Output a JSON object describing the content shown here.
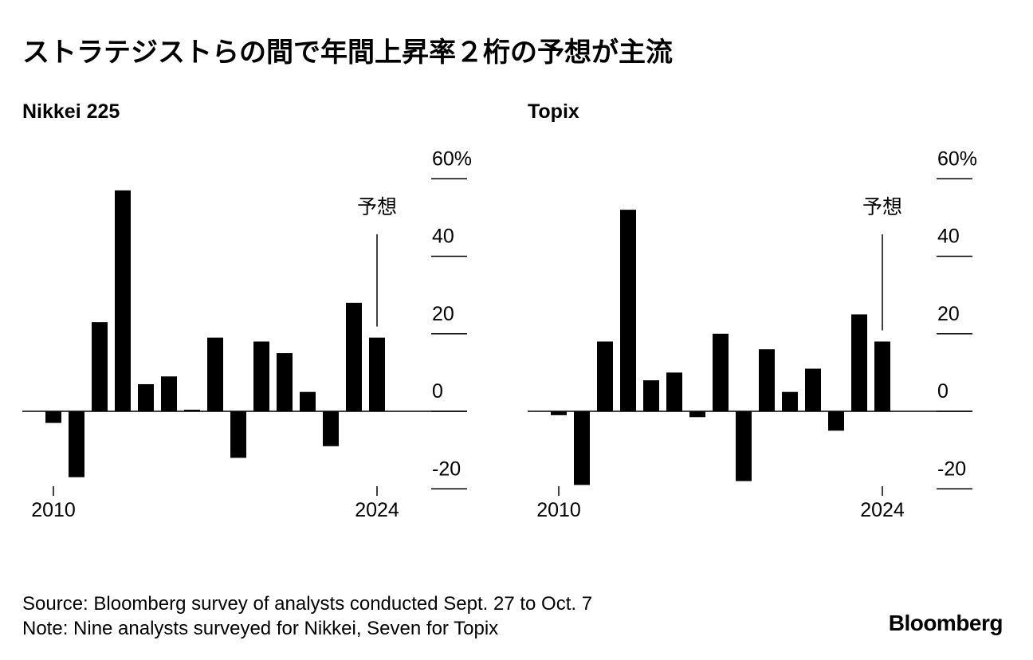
{
  "title": "ストラテジストらの間で年間上昇率２桁の予想が主流",
  "footer": {
    "source": "Source: Bloomberg survey of analysts conducted Sept. 27 to Oct. 7",
    "note": "Note: Nine analysts surveyed for Nikkei, Seven for Topix",
    "brand": "Bloomberg"
  },
  "chart_data": [
    {
      "type": "bar",
      "title": "Nikkei 225",
      "categories": [
        "2010",
        "2011",
        "2012",
        "2013",
        "2014",
        "2015",
        "2016",
        "2017",
        "2018",
        "2019",
        "2020",
        "2021",
        "2022",
        "2023",
        "2024"
      ],
      "values": [
        -3,
        -17,
        23,
        57,
        7,
        9,
        0.4,
        19,
        -12,
        18,
        15,
        5,
        -9,
        28,
        19
      ],
      "x_tick_labels": [
        "2010",
        "2024"
      ],
      "y_ticks": [
        60,
        40,
        20,
        0,
        -20
      ],
      "y_tick_labels": [
        "60%",
        "40",
        "20",
        "0",
        "-20"
      ],
      "ylim": [
        -20,
        60
      ],
      "annotation": {
        "label": "予想",
        "category": "2024"
      }
    },
    {
      "type": "bar",
      "title": "Topix",
      "categories": [
        "2010",
        "2011",
        "2012",
        "2013",
        "2014",
        "2015",
        "2016",
        "2017",
        "2018",
        "2019",
        "2020",
        "2021",
        "2022",
        "2023",
        "2024"
      ],
      "values": [
        -1,
        -19,
        18,
        52,
        8,
        10,
        -1.5,
        20,
        -18,
        16,
        5,
        11,
        -5,
        25,
        18
      ],
      "x_tick_labels": [
        "2010",
        "2024"
      ],
      "y_ticks": [
        60,
        40,
        20,
        0,
        -20
      ],
      "y_tick_labels": [
        "60%",
        "40",
        "20",
        "0",
        "-20"
      ],
      "ylim": [
        -20,
        60
      ],
      "annotation": {
        "label": "予想",
        "category": "2024"
      }
    }
  ]
}
